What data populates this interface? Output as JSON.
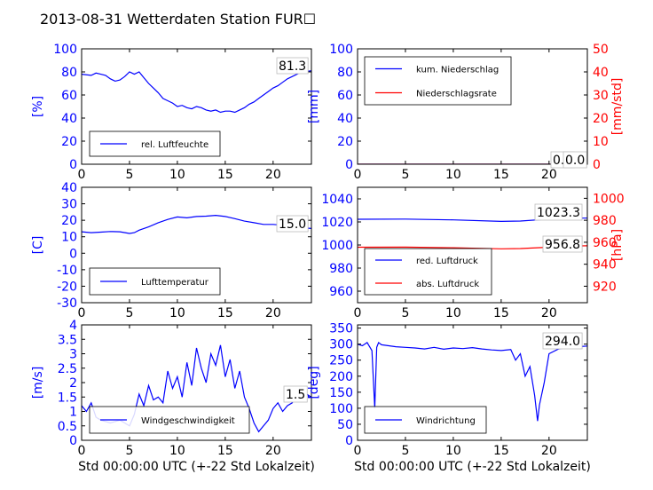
{
  "figure": {
    "title": "2013-08-31 Wetterdaten Station FUR☐"
  },
  "colors": {
    "blue": "#0000ff",
    "red": "#ff0000",
    "black": "#000000",
    "white": "#ffffff"
  },
  "chart_data": [
    {
      "id": "humidity",
      "type": "line",
      "xlim": [
        0,
        24
      ],
      "xticks": [
        0,
        5,
        10,
        15,
        20
      ],
      "ylim": [
        0,
        100
      ],
      "yticks": [
        0,
        20,
        40,
        60,
        80,
        100
      ],
      "ylabel": "[%]",
      "last_value_label": "81.3",
      "legend": [
        "rel. Luftfeuchte"
      ],
      "series": [
        {
          "name": "rel. Luftfeuchte",
          "color": "#0000ff",
          "x": [
            0,
            1,
            1.5,
            2,
            2.5,
            3,
            3.5,
            4,
            4.5,
            5,
            5.5,
            6,
            6.5,
            7,
            7.5,
            8,
            8.5,
            9,
            9.5,
            10,
            10.5,
            11,
            11.5,
            12,
            12.5,
            13,
            13.5,
            14,
            14.5,
            15,
            15.5,
            16,
            16.5,
            17,
            17.5,
            18,
            18.5,
            19,
            19.5,
            20,
            20.5,
            21,
            21.5,
            22,
            22.5,
            23,
            24
          ],
          "y": [
            78,
            77,
            79,
            78,
            77,
            74,
            72,
            73,
            76,
            80,
            78,
            80,
            75,
            70,
            66,
            62,
            57,
            55,
            53,
            50,
            51,
            49,
            48,
            50,
            49,
            47,
            46,
            47,
            45,
            46,
            46,
            45,
            47,
            49,
            52,
            54,
            57,
            60,
            63,
            66,
            68,
            71,
            74,
            76,
            78,
            80,
            81
          ]
        }
      ]
    },
    {
      "id": "precip",
      "type": "line",
      "xlim": [
        0,
        24
      ],
      "xticks": [
        0,
        5,
        10,
        15,
        20
      ],
      "ylim": [
        0,
        100
      ],
      "yticks": [
        0,
        20,
        40,
        60,
        80,
        100
      ],
      "ylabel": "[mm]",
      "y2lim": [
        0,
        50
      ],
      "y2ticks": [
        0,
        10,
        20,
        30,
        40,
        50
      ],
      "y2label": "[mm/std]",
      "last_value_label": "0.0",
      "last_value_label2": "0.0",
      "legend": [
        "kum. Niederschlag",
        "Niederschlagsrate"
      ],
      "series": [
        {
          "name": "kum. Niederschlag",
          "color": "#0000ff",
          "x": [
            0,
            24
          ],
          "y": [
            0,
            0
          ]
        },
        {
          "name": "Niederschlagsrate",
          "color": "#ff0000",
          "axis": "right",
          "x": [
            0,
            24
          ],
          "y": [
            0,
            0
          ]
        }
      ]
    },
    {
      "id": "temperature",
      "type": "line",
      "xlim": [
        0,
        24
      ],
      "xticks": [
        0,
        5,
        10,
        15,
        20
      ],
      "ylim": [
        -30,
        40
      ],
      "yticks": [
        -30,
        -20,
        -10,
        0,
        10,
        20,
        30,
        40
      ],
      "ylabel": "[C]",
      "last_value_label": "15.0",
      "legend": [
        "Lufttemperatur"
      ],
      "series": [
        {
          "name": "Lufttemperatur",
          "color": "#0000ff",
          "x": [
            0,
            1,
            2,
            3,
            4,
            5,
            5.5,
            6,
            7,
            8,
            9,
            10,
            11,
            12,
            13,
            14,
            15,
            16,
            17,
            18,
            19,
            20,
            21,
            22,
            23,
            24
          ],
          "y": [
            13,
            12.5,
            12.8,
            13.2,
            13,
            12,
            12.5,
            14,
            16,
            18.5,
            20.5,
            22,
            21.5,
            22.3,
            22.5,
            23,
            22.3,
            21,
            19.5,
            18.5,
            17.5,
            17.5,
            17,
            16,
            15.5,
            15
          ]
        }
      ]
    },
    {
      "id": "pressure",
      "type": "line",
      "xlim": [
        0,
        24
      ],
      "xticks": [
        0,
        5,
        10,
        15,
        20
      ],
      "ylim": [
        950,
        1050
      ],
      "yticks": [
        960,
        980,
        1000,
        1020,
        1040
      ],
      "y2lim": [
        905,
        1010
      ],
      "y2ticks": [
        920,
        940,
        960,
        980,
        1000
      ],
      "y2label": "[hPa]",
      "last_value_label": "1023.3",
      "last_value_label2": "956.8",
      "legend": [
        "red. Luftdruck",
        "abs. Luftdruck"
      ],
      "series": [
        {
          "name": "red. Luftdruck",
          "color": "#0000ff",
          "x": [
            0,
            5,
            10,
            15,
            17,
            20,
            22,
            24
          ],
          "y": [
            1022.3,
            1022.5,
            1021.8,
            1020.5,
            1020.8,
            1022.5,
            1023.2,
            1023.3
          ]
        },
        {
          "name": "abs. Luftdruck",
          "color": "#ff0000",
          "axis": "right",
          "x": [
            0,
            5,
            10,
            15,
            17,
            20,
            22,
            24
          ],
          "y": [
            955.5,
            955.6,
            955,
            954,
            954.3,
            955.5,
            956.5,
            956.8
          ]
        }
      ]
    },
    {
      "id": "wind_speed",
      "type": "line",
      "xlim": [
        0,
        24
      ],
      "xticks": [
        0,
        5,
        10,
        15,
        20
      ],
      "ylim": [
        0,
        4
      ],
      "yticks": [
        0.0,
        0.5,
        1.0,
        1.5,
        2.0,
        2.5,
        3.0,
        3.5,
        4.0
      ],
      "ylabel": "[m/s]",
      "xlabel": "Std 00:00:00 UTC (+-22 Std Lokalzeit)",
      "last_value_label": "1.5",
      "legend": [
        "Windgeschwindigkeit"
      ],
      "series": [
        {
          "name": "Windgeschwindigkeit",
          "color": "#0000ff",
          "x": [
            0,
            0.5,
            1,
            1.5,
            2,
            3,
            4,
            5,
            5.5,
            6,
            6.5,
            7,
            7.5,
            8,
            8.5,
            9,
            9.5,
            10,
            10.5,
            11,
            11.5,
            12,
            12.5,
            13,
            13.5,
            14,
            14.5,
            15,
            15.5,
            16,
            16.5,
            17,
            17.5,
            18,
            18.5,
            19,
            19.5,
            20,
            20.5,
            21,
            21.5,
            22,
            22.5,
            23,
            23.5,
            24
          ],
          "y": [
            1.2,
            1.0,
            1.3,
            0.8,
            0.7,
            0.6,
            0.7,
            0.5,
            0.9,
            1.6,
            1.2,
            1.9,
            1.4,
            1.5,
            1.3,
            2.4,
            1.8,
            2.2,
            1.5,
            2.7,
            1.9,
            3.2,
            2.5,
            2.0,
            3.0,
            2.6,
            3.3,
            2.2,
            2.8,
            1.8,
            2.4,
            1.5,
            1.1,
            0.6,
            0.3,
            0.5,
            0.7,
            1.1,
            1.3,
            1.0,
            1.2,
            1.3,
            1.6,
            1.4,
            1.6,
            1.5
          ]
        }
      ]
    },
    {
      "id": "wind_dir",
      "type": "line",
      "xlim": [
        0,
        24
      ],
      "xticks": [
        0,
        5,
        10,
        15,
        20
      ],
      "ylim": [
        0,
        360
      ],
      "yticks": [
        0,
        50,
        100,
        150,
        200,
        250,
        300,
        350
      ],
      "ylabel": "[deg]",
      "xlabel": "Std 00:00:00 UTC (+-22 Std Lokalzeit)",
      "last_value_label": "294.0",
      "legend": [
        "Windrichtung"
      ],
      "series": [
        {
          "name": "Windrichtung",
          "color": "#0000ff",
          "x": [
            0,
            0.5,
            1,
            1.5,
            1.8,
            2,
            2.2,
            2.5,
            3,
            4,
            5,
            6,
            7,
            8,
            9,
            10,
            11,
            12,
            13,
            14,
            15,
            16,
            16.5,
            17,
            17.5,
            18,
            18.5,
            18.8,
            19,
            19.5,
            20,
            21,
            22,
            23,
            24
          ],
          "y": [
            300,
            295,
            305,
            280,
            100,
            290,
            305,
            298,
            296,
            292,
            290,
            288,
            285,
            290,
            284,
            288,
            286,
            289,
            285,
            282,
            280,
            283,
            250,
            270,
            200,
            230,
            140,
            60,
            110,
            180,
            270,
            285,
            290,
            292,
            294
          ]
        }
      ]
    }
  ]
}
